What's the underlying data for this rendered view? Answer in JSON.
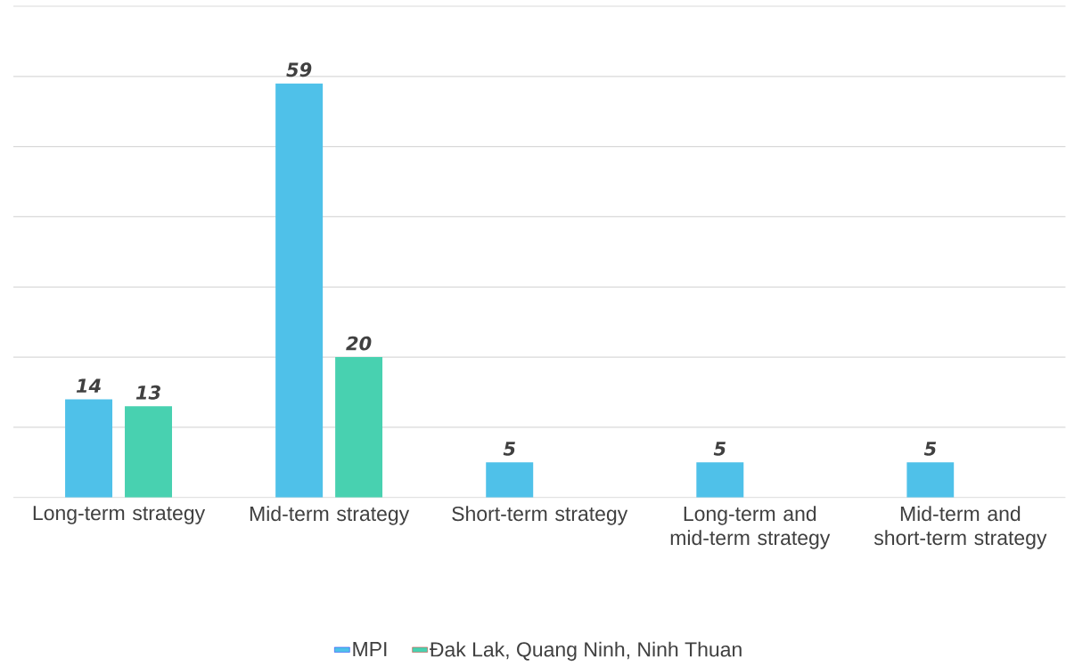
{
  "chart_data": {
    "type": "bar",
    "categories": [
      "Long-term strategy",
      "Mid-term strategy",
      "Short-term strategy",
      "Long-term and mid-term strategy",
      "Mid-term and short-term strategy"
    ],
    "series": [
      {
        "name": "MPI",
        "color": "#4fc1e9",
        "values": [
          14,
          59,
          5,
          5,
          5
        ]
      },
      {
        "name": "Đak Lak, Quang Ninh, Ninh Thuan",
        "color": "#48d1b0",
        "values": [
          13,
          20,
          null,
          null,
          null
        ]
      }
    ],
    "ylim": [
      0,
      70
    ],
    "yticks": [
      {
        "value": 0,
        "label": null
      },
      {
        "value": 10,
        "label": null
      },
      {
        "value": 20,
        "label": null
      },
      {
        "value": 30,
        "label": null
      },
      {
        "value": 40,
        "label": null
      },
      {
        "value": 50,
        "label": null
      },
      {
        "value": 60,
        "label": null
      },
      {
        "value": 70,
        "label": null
      }
    ],
    "tick_labels": "x",
    "grid": "y",
    "legend": "bottom",
    "data_labels": true
  }
}
